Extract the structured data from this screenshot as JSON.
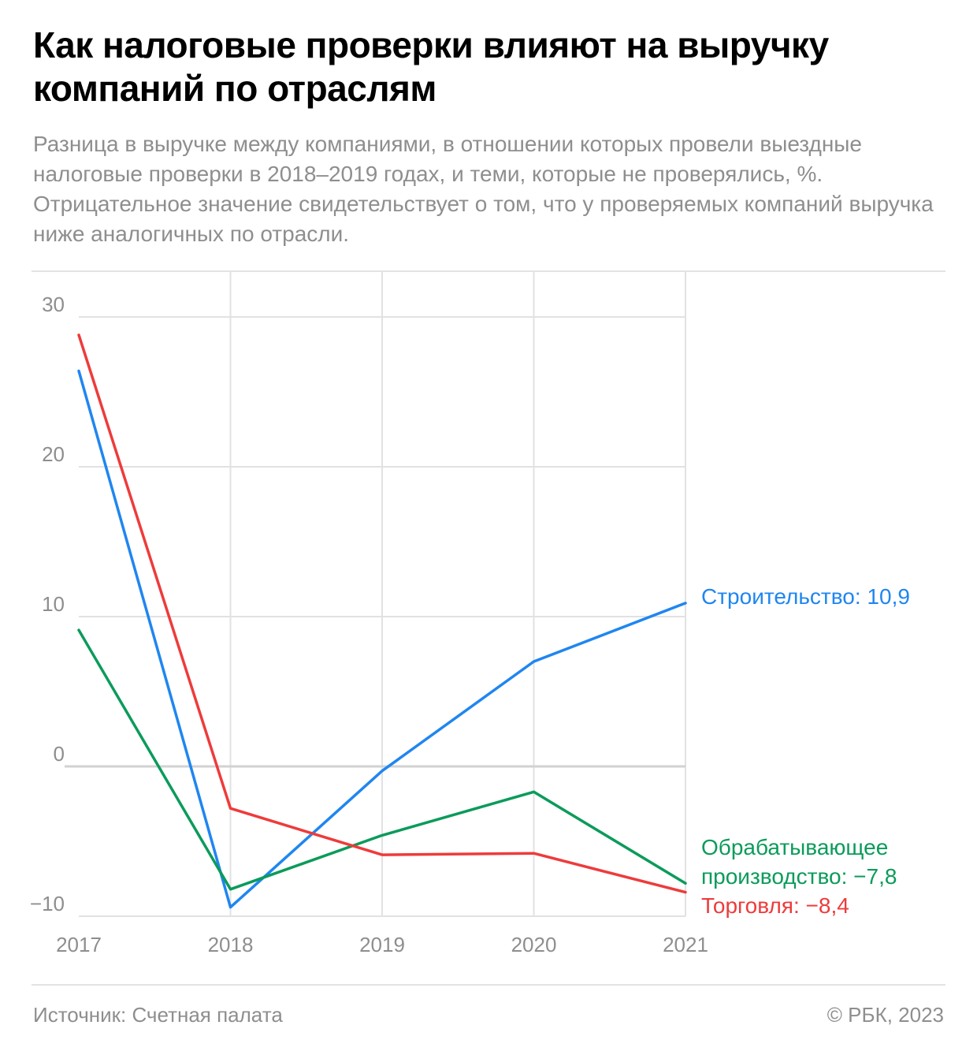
{
  "header": {
    "title": "Как налоговые проверки влияют на выручку компаний по отраслям",
    "subtitle": "Разница в выручке между компаниями, в отношении которых провели выездные налоговые проверки в 2018–2019 годах, и теми, которые не проверялись, %. Отрицательное значение свидетельствует о том, что у проверяемых компаний выручка ниже аналогичных по отрасли."
  },
  "footer": {
    "source": "Источник: Счетная палата",
    "copyright": "© РБК, 2023"
  },
  "chart_data": {
    "type": "line",
    "x": [
      "2017",
      "2018",
      "2019",
      "2020",
      "2021"
    ],
    "ylim": [
      -10,
      30
    ],
    "yticks": [
      30,
      20,
      10,
      0,
      -10
    ],
    "ytick_labels": [
      "30",
      "20",
      "10",
      "0",
      "−10"
    ],
    "grid": true,
    "series": [
      {
        "name": "Строительство",
        "values": [
          26.4,
          -9.4,
          -0.3,
          7.0,
          10.9
        ],
        "color": "#1f86f0",
        "label_lines": [
          "Строительство: 10,9"
        ]
      },
      {
        "name": "Обрабатывающее производство",
        "values": [
          9.1,
          -8.2,
          -4.6,
          -1.7,
          -7.8
        ],
        "color": "#0b9b5a",
        "label_lines": [
          "Обрабатывающее",
          "производство: −7,8"
        ]
      },
      {
        "name": "Торговля",
        "values": [
          28.8,
          -2.8,
          -5.9,
          -5.8,
          -8.4
        ],
        "color": "#ee3b3b",
        "label_lines": [
          "Торговля: −8,4"
        ]
      }
    ]
  }
}
